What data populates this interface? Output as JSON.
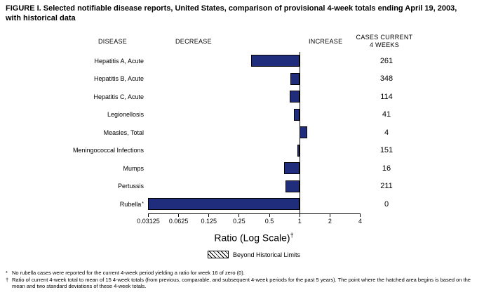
{
  "figure": {
    "title": "FIGURE I. Selected notifiable disease reports, United States, comparison of provisional 4-week totals ending April 19, 2003, with historical data"
  },
  "headers": {
    "disease": "DISEASE",
    "decrease": "DECREASE",
    "increase": "INCREASE",
    "cases_line1": "CASES CURRENT",
    "cases_line2": "4 WEEKS"
  },
  "chart_data": {
    "type": "bar",
    "orientation": "horizontal",
    "scale": "log2",
    "baseline": 1,
    "xlim": [
      0.03125,
      4
    ],
    "tick_values": [
      0.03125,
      0.0625,
      0.125,
      0.25,
      0.5,
      1,
      2,
      4
    ],
    "tick_labels": [
      "0.03125",
      "0.0625",
      "0.125",
      "0.25",
      "0.5",
      "1",
      "2",
      "4"
    ],
    "xlabel": "Ratio (Log Scale)",
    "xlabel_note_symbol": "†",
    "bar_color": "#1f2d7c",
    "rows": [
      {
        "disease": "Hepatitis A, Acute",
        "marker": "",
        "ratio": 0.33,
        "cases": 261
      },
      {
        "disease": "Hepatitis B, Acute",
        "marker": "",
        "ratio": 0.81,
        "cases": 348
      },
      {
        "disease": "Hepatitis C, Acute",
        "marker": "",
        "ratio": 0.8,
        "cases": 114
      },
      {
        "disease": "Legionellosis",
        "marker": "",
        "ratio": 0.89,
        "cases": 41
      },
      {
        "disease": "Measles, Total",
        "marker": "",
        "ratio": 1.2,
        "cases": 4
      },
      {
        "disease": "Meningococcal Infections",
        "marker": "",
        "ratio": 0.95,
        "cases": 151
      },
      {
        "disease": "Mumps",
        "marker": "",
        "ratio": 0.7,
        "cases": 16
      },
      {
        "disease": "Pertussis",
        "marker": "",
        "ratio": 0.73,
        "cases": 211
      },
      {
        "disease": "Rubella",
        "marker": "*",
        "ratio": 0.03125,
        "cases": 0
      }
    ],
    "legend": [
      {
        "label": "Beyond Historical Limits",
        "style": "hatched"
      }
    ]
  },
  "footnotes": [
    {
      "symbol": "*",
      "text": "No rubella cases were reported for the current 4-week period yielding a ratio for week 16 of zero (0)."
    },
    {
      "symbol": "†",
      "text": "Ratio of current 4-week total to mean of 15 4-week totals (from previous, comparable, and subsequent 4-week periods for the past 5 years). The point where the hatched area begins is based on the mean and two standard deviations of these 4-week totals."
    }
  ]
}
